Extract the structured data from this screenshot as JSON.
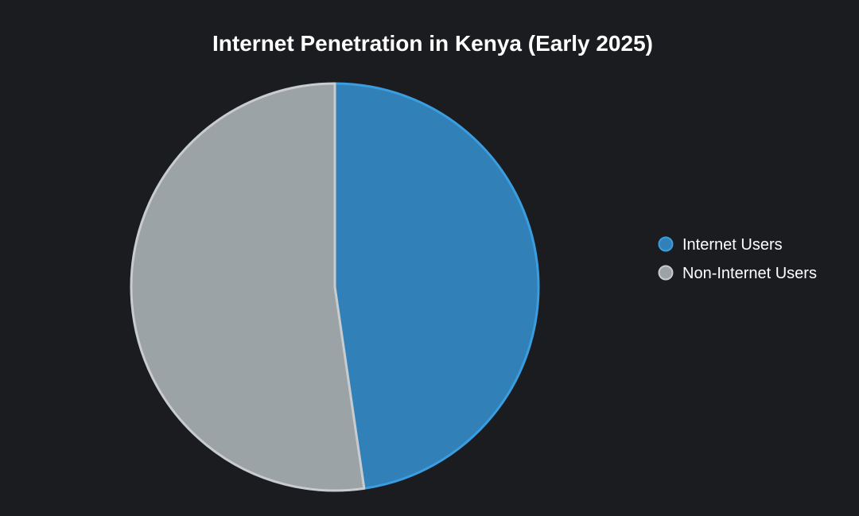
{
  "chart_data": {
    "type": "pie",
    "title": "Internet Penetration in Kenya (Early 2025)",
    "slices": [
      {
        "label": "Internet Users",
        "value": 47.7,
        "color": "#3181b8",
        "border": "#3a9de0"
      },
      {
        "label": "Non-Internet Users",
        "value": 52.3,
        "color": "#9ca3a6",
        "border": "#c9cccf"
      }
    ],
    "legend_position": "right"
  },
  "colors": {
    "background": "#1b1c1f",
    "text": "#ffffff"
  }
}
